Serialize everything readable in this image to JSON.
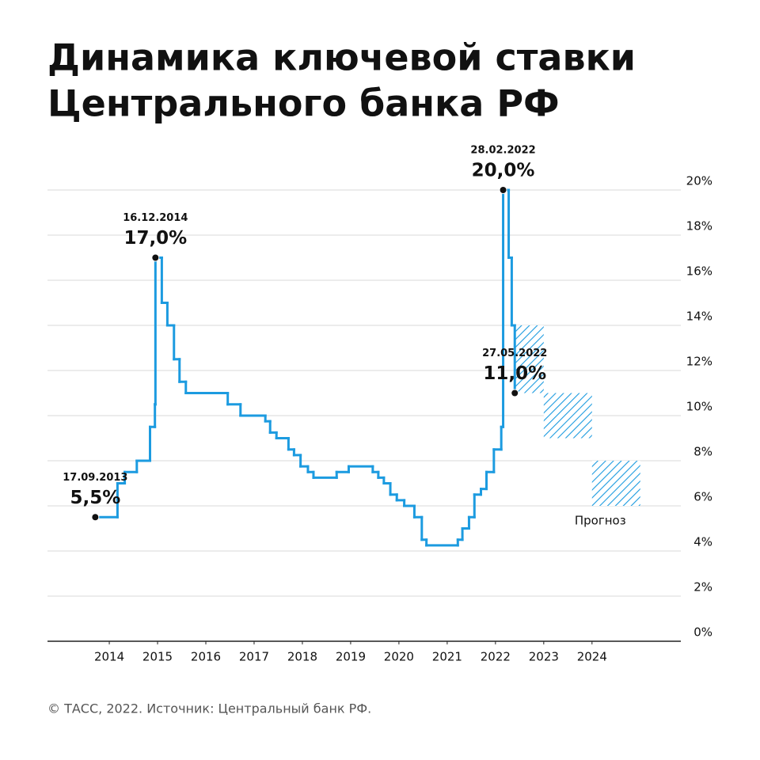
{
  "chart_data": {
    "type": "step",
    "title": [
      "Динамика ключевой ставки",
      "Центрального банка РФ"
    ],
    "source": "© ТАСС, 2022. Источник: Центральный банк РФ.",
    "color": "#1c9be0",
    "grid": true,
    "xlim": [
      2012.72,
      2025.84
    ],
    "xticks": [
      2014,
      2015,
      2016,
      2017,
      2018,
      2019,
      2020,
      2021,
      2022,
      2023,
      2024
    ],
    "ylim": [
      0,
      20
    ],
    "yticks": [
      {
        "value": 0,
        "label": "0%"
      },
      {
        "value": 2,
        "label": "2%"
      },
      {
        "value": 4,
        "label": "4%"
      },
      {
        "value": 6,
        "label": "6%"
      },
      {
        "value": 8,
        "label": "8%"
      },
      {
        "value": 10,
        "label": "10%"
      },
      {
        "value": 12,
        "label": "12%"
      },
      {
        "value": 14,
        "label": "14%"
      },
      {
        "value": 16,
        "label": "16%"
      },
      {
        "value": 18,
        "label": "18%"
      },
      {
        "value": 20,
        "label": "20%"
      }
    ],
    "x": [
      2013.71,
      2014.17,
      2014.32,
      2014.57,
      2014.844,
      2014.945,
      2014.956,
      2015.088,
      2015.203,
      2015.34,
      2015.455,
      2015.586,
      2016.454,
      2016.718,
      2017.233,
      2017.332,
      2017.463,
      2017.712,
      2017.827,
      2017.962,
      2018.115,
      2018.23,
      2018.71,
      2018.96,
      2019.458,
      2019.573,
      2019.688,
      2019.822,
      2019.956,
      2020.11,
      2020.32,
      2020.474,
      2020.57,
      2021.22,
      2021.315,
      2021.452,
      2021.564,
      2021.699,
      2021.814,
      2021.967,
      2022.12,
      2022.159,
      2022.274,
      2022.337,
      2022.4
    ],
    "values": [
      5.5,
      7.0,
      7.5,
      8.0,
      9.5,
      10.5,
      17.0,
      15.0,
      14.0,
      12.5,
      11.5,
      11.0,
      10.5,
      10.0,
      9.75,
      9.25,
      9.0,
      8.5,
      8.25,
      7.75,
      7.5,
      7.25,
      7.5,
      7.75,
      7.5,
      7.25,
      7.0,
      6.5,
      6.25,
      6.0,
      5.5,
      4.5,
      4.25,
      4.5,
      5.0,
      5.5,
      6.5,
      6.75,
      7.5,
      8.5,
      9.5,
      20.0,
      17.0,
      14.0,
      11.0
    ],
    "annotations": [
      {
        "date": "17.09.2013",
        "text": "5,5%",
        "x": 2013.71,
        "y": 5.5
      },
      {
        "date": "16.12.2014",
        "text": "17,0%",
        "x": 2014.956,
        "y": 17.0
      },
      {
        "date": "28.02.2022",
        "text": "20,0%",
        "x": 2022.159,
        "y": 20.0
      },
      {
        "date": "27.05.2022",
        "text": "11,0%",
        "x": 2022.4,
        "y": 11.0
      }
    ],
    "forecast": {
      "label": "Прогноз",
      "ranges": [
        {
          "x": [
            2022.42,
            2023
          ],
          "y": [
            11,
            14
          ]
        },
        {
          "x": [
            2023,
            2024
          ],
          "y": [
            9,
            11
          ]
        },
        {
          "x": [
            2024,
            2025
          ],
          "y": [
            6,
            8
          ]
        }
      ]
    }
  }
}
